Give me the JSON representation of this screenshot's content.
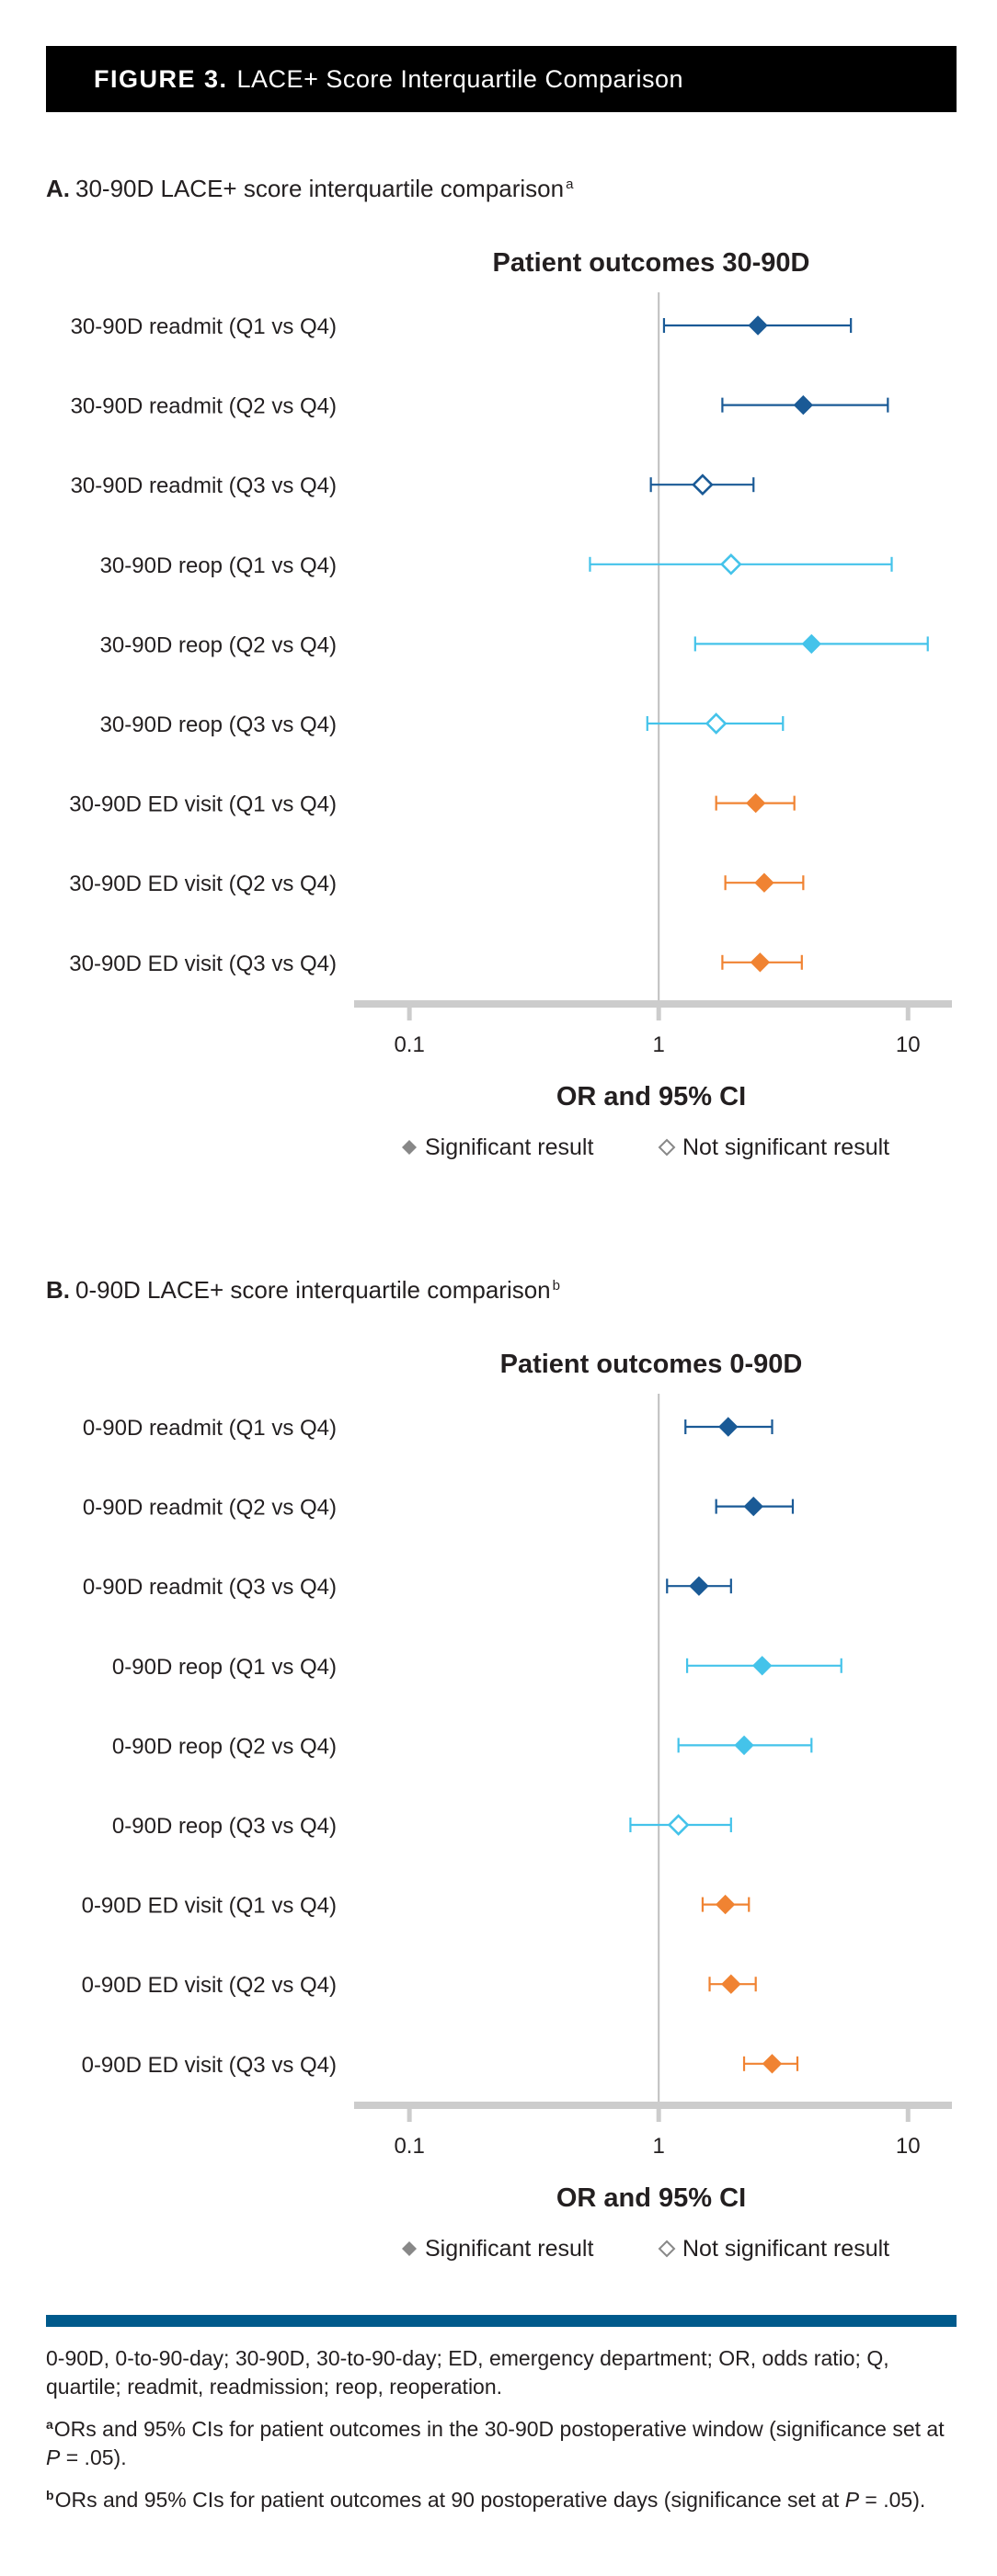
{
  "header": {
    "figure_label": "FIGURE 3.",
    "title": "LACE+ Score Interquartile Comparison"
  },
  "colors": {
    "readmit": "#1a5a96",
    "reop": "#44c3ea",
    "ed_visit": "#f08332",
    "axis": "#cccccc",
    "ref_line": "#bfbfbf",
    "legend_marker": "#888888"
  },
  "chart_data": [
    {
      "type": "forest",
      "panel_letter": "A.",
      "panel_title": "30-90D LACE+ score interquartile comparison",
      "panel_footnote_mark": "a",
      "title": "Patient outcomes 30-90D",
      "xlabel": "OR and 95% CI",
      "x_scale": "log",
      "xlim": [
        0.06,
        15
      ],
      "xticks": [
        0.1,
        1,
        10
      ],
      "xtick_labels": [
        "0.1",
        "1",
        "10"
      ],
      "reference_line": 1,
      "legend": {
        "significant": "Significant result",
        "not_significant": "Not significant result"
      },
      "rows": [
        {
          "label": "30-90D readmit (Q1 vs Q4)",
          "or": 2.5,
          "lo": 1.05,
          "hi": 5.9,
          "significant": true,
          "group": "readmit"
        },
        {
          "label": "30-90D readmit (Q2 vs Q4)",
          "or": 3.8,
          "lo": 1.8,
          "hi": 8.3,
          "significant": true,
          "group": "readmit"
        },
        {
          "label": "30-90D readmit (Q3 vs Q4)",
          "or": 1.5,
          "lo": 0.93,
          "hi": 2.4,
          "significant": false,
          "group": "readmit"
        },
        {
          "label": "30-90D reop (Q1 vs Q4)",
          "or": 1.95,
          "lo": 0.53,
          "hi": 8.6,
          "significant": false,
          "group": "reop"
        },
        {
          "label": "30-90D reop (Q2 vs Q4)",
          "or": 4.1,
          "lo": 1.4,
          "hi": 12.0,
          "significant": true,
          "group": "reop"
        },
        {
          "label": "30-90D reop (Q3 vs Q4)",
          "or": 1.7,
          "lo": 0.9,
          "hi": 3.15,
          "significant": false,
          "group": "reop"
        },
        {
          "label": "30-90D ED visit (Q1 vs Q4)",
          "or": 2.45,
          "lo": 1.7,
          "hi": 3.5,
          "significant": true,
          "group": "ed_visit"
        },
        {
          "label": "30-90D ED visit (Q2 vs Q4)",
          "or": 2.65,
          "lo": 1.85,
          "hi": 3.8,
          "significant": true,
          "group": "ed_visit"
        },
        {
          "label": "30-90D ED visit (Q3 vs Q4)",
          "or": 2.55,
          "lo": 1.8,
          "hi": 3.75,
          "significant": true,
          "group": "ed_visit"
        }
      ]
    },
    {
      "type": "forest",
      "panel_letter": "B.",
      "panel_title": "0-90D LACE+ score interquartile comparison",
      "panel_footnote_mark": "b",
      "title": "Patient outcomes 0-90D",
      "xlabel": "OR and 95% CI",
      "x_scale": "log",
      "xlim": [
        0.06,
        15
      ],
      "xticks": [
        0.1,
        1,
        10
      ],
      "xtick_labels": [
        "0.1",
        "1",
        "10"
      ],
      "reference_line": 1,
      "legend": {
        "significant": "Significant result",
        "not_significant": "Not significant result"
      },
      "rows": [
        {
          "label": "0-90D readmit (Q1 vs Q4)",
          "or": 1.9,
          "lo": 1.28,
          "hi": 2.85,
          "significant": true,
          "group": "readmit"
        },
        {
          "label": "0-90D readmit (Q2 vs Q4)",
          "or": 2.4,
          "lo": 1.7,
          "hi": 3.45,
          "significant": true,
          "group": "readmit"
        },
        {
          "label": "0-90D readmit (Q3 vs Q4)",
          "or": 1.45,
          "lo": 1.08,
          "hi": 1.95,
          "significant": true,
          "group": "readmit"
        },
        {
          "label": "0-90D reop (Q1 vs Q4)",
          "or": 2.6,
          "lo": 1.3,
          "hi": 5.4,
          "significant": true,
          "group": "reop"
        },
        {
          "label": "0-90D reop (Q2 vs Q4)",
          "or": 2.2,
          "lo": 1.2,
          "hi": 4.1,
          "significant": true,
          "group": "reop"
        },
        {
          "label": "0-90D reop (Q3 vs Q4)",
          "or": 1.2,
          "lo": 0.77,
          "hi": 1.95,
          "significant": false,
          "group": "reop"
        },
        {
          "label": "0-90D ED visit (Q1 vs Q4)",
          "or": 1.85,
          "lo": 1.5,
          "hi": 2.3,
          "significant": true,
          "group": "ed_visit"
        },
        {
          "label": "0-90D ED visit (Q2 vs Q4)",
          "or": 1.95,
          "lo": 1.6,
          "hi": 2.45,
          "significant": true,
          "group": "ed_visit"
        },
        {
          "label": "0-90D ED visit (Q3 vs Q4)",
          "or": 2.85,
          "lo": 2.2,
          "hi": 3.6,
          "significant": true,
          "group": "ed_visit"
        }
      ]
    }
  ],
  "footnotes": {
    "abbreviations": "0-90D, 0-to-90-day; 30-90D, 30-to-90-day; ED, emergency department; OR, odds ratio; Q, quartile; readmit, readmission; reop, reoperation.",
    "a_mark": "a",
    "a_text_before": "ORs and 95% CIs for patient outcomes in the 30-90D postoperative window (significance set at ",
    "a_p": "P",
    "a_text_after": " = .05).",
    "b_mark": "b",
    "b_text_before": "ORs and 95% CIs for patient outcomes at 90 postoperative days (significance set at ",
    "b_p": "P",
    "b_text_after": " = .05)."
  }
}
